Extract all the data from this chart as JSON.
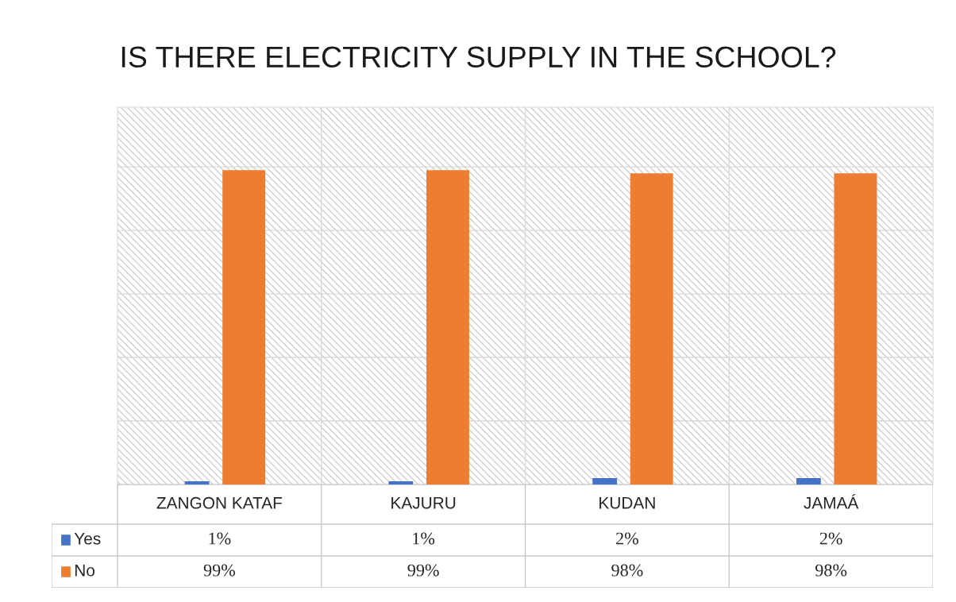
{
  "chart_data": {
    "type": "bar",
    "title": "IS THERE ELECTRICITY SUPPLY IN THE SCHOOL?",
    "categories": [
      "ZANGON KATAF",
      "KAJURU",
      "KUDAN",
      "JAMAÁ"
    ],
    "series": [
      {
        "name": "Yes",
        "color": "#4472c4",
        "values": [
          1,
          1,
          2,
          2
        ],
        "value_labels": [
          "1%",
          "1%",
          "2%",
          "2%"
        ]
      },
      {
        "name": "No",
        "color": "#ed7d31",
        "values": [
          99,
          99,
          98,
          98
        ],
        "value_labels": [
          "99%",
          "99%",
          "98%",
          "98%"
        ]
      }
    ],
    "grid": "y",
    "legend": "bottom left"
  }
}
